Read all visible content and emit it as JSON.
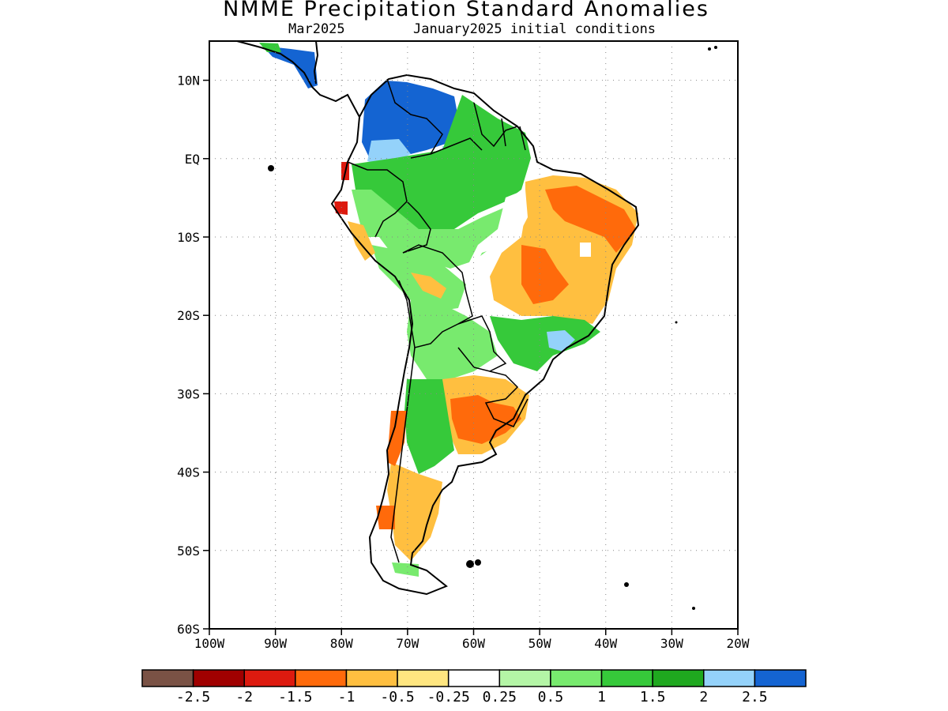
{
  "title": "NMME Precipitation Standard Anomalies",
  "subtitle_left": "Mar2025",
  "subtitle_right": "January2025 initial conditions",
  "map": {
    "lon_range": [
      -100,
      -20
    ],
    "lat_range": [
      -60,
      15
    ],
    "lat_ticks": [
      {
        "value": 10,
        "label": "10N"
      },
      {
        "value": 0,
        "label": "EQ"
      },
      {
        "value": -10,
        "label": "10S"
      },
      {
        "value": -20,
        "label": "20S"
      },
      {
        "value": -30,
        "label": "30S"
      },
      {
        "value": -40,
        "label": "40S"
      },
      {
        "value": -50,
        "label": "50S"
      },
      {
        "value": -60,
        "label": "60S"
      }
    ],
    "lon_ticks": [
      {
        "value": -100,
        "label": "100W"
      },
      {
        "value": -90,
        "label": "90W"
      },
      {
        "value": -80,
        "label": "80W"
      },
      {
        "value": -70,
        "label": "70W"
      },
      {
        "value": -60,
        "label": "60W"
      },
      {
        "value": -50,
        "label": "50W"
      },
      {
        "value": -40,
        "label": "40W"
      },
      {
        "value": -30,
        "label": "30W"
      },
      {
        "value": -20,
        "label": "20W"
      }
    ],
    "grid": "dotted"
  },
  "colorbar": {
    "colors": [
      "#7a5245",
      "#a00000",
      "#dd1a0f",
      "#ff6a0b",
      "#ffbf40",
      "#ffe680",
      "#ffffff",
      "#b4f5a6",
      "#78ea6e",
      "#36c93a",
      "#1fa81f",
      "#94d2fa",
      "#1464d2"
    ],
    "labels": [
      "-2.5",
      "-2",
      "-1.5",
      "-1",
      "-0.5",
      "-0.25",
      "0.25",
      "0.5",
      "1",
      "1.5",
      "2",
      "2.5"
    ]
  }
}
